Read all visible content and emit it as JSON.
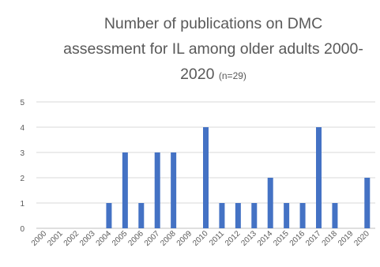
{
  "chart_data": {
    "type": "bar",
    "title_lines": [
      "Number of publications on DMC",
      "assessment for IL among older adults 2000-",
      "2020"
    ],
    "title_note": "(n=29)",
    "xlabel": "",
    "ylabel": "",
    "ylim": [
      0,
      5
    ],
    "yticks": [
      0,
      1,
      2,
      3,
      4,
      5
    ],
    "grid": true,
    "legend": "none",
    "bar_color": "#4472C4",
    "categories": [
      "2000",
      "2001",
      "2002",
      "2003",
      "2004",
      "2005",
      "2006",
      "2007",
      "2008",
      "2009",
      "2010",
      "2011",
      "2012",
      "2013",
      "2014",
      "2015",
      "2016",
      "2017",
      "2018",
      "2019",
      "2020"
    ],
    "values": [
      0,
      0,
      0,
      0,
      1,
      3,
      1,
      3,
      3,
      0,
      4,
      1,
      1,
      1,
      2,
      1,
      1,
      4,
      1,
      0,
      2
    ]
  }
}
